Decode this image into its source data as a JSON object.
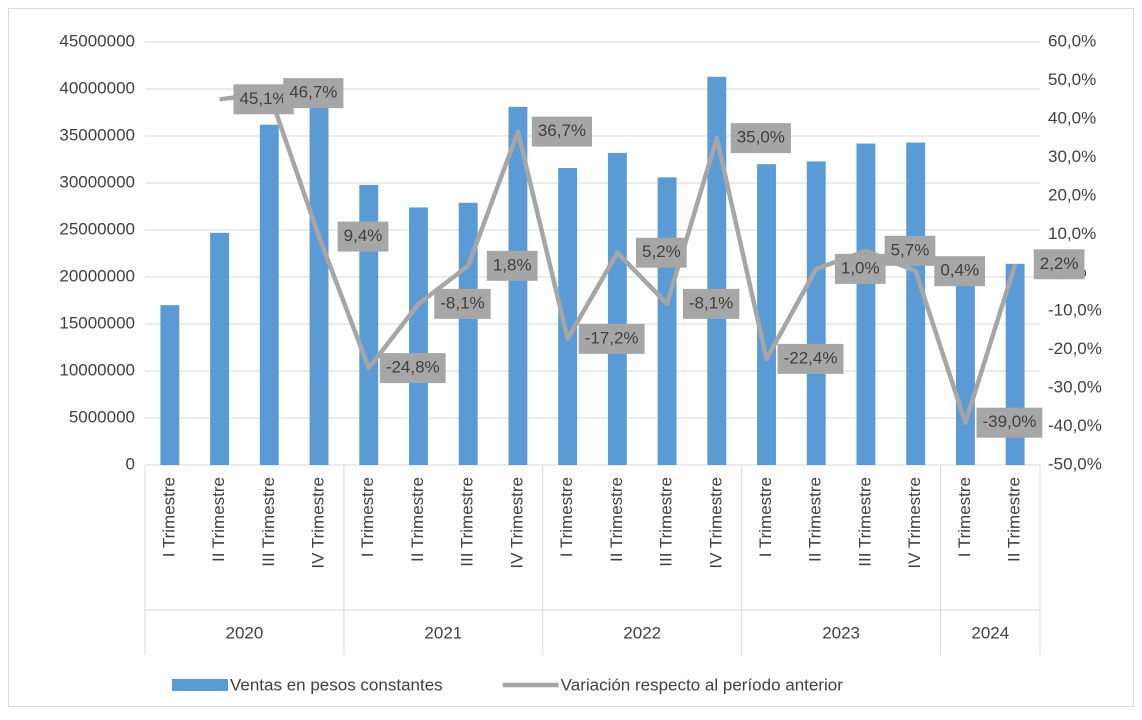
{
  "chart_data": {
    "type": "bar_line",
    "categories": [
      "I Trimestre",
      "II Trimestre",
      "III Trimestre",
      "IV Trimestre",
      "I Trimestre",
      "II Trimestre",
      "III Trimestre",
      "IV Trimestre",
      "I Trimestre",
      "II Trimestre",
      "III Trimestre",
      "IV Trimestre",
      "I Trimestre",
      "II Trimestre",
      "III Trimestre",
      "IV Trimestre",
      "I Trimestre",
      "II Trimestre"
    ],
    "groups": [
      {
        "label": "2020",
        "start": 0,
        "end": 3
      },
      {
        "label": "2021",
        "start": 4,
        "end": 7
      },
      {
        "label": "2022",
        "start": 8,
        "end": 11
      },
      {
        "label": "2023",
        "start": 12,
        "end": 15
      },
      {
        "label": "2024",
        "start": 16,
        "end": 17
      }
    ],
    "series": [
      {
        "name": "Ventas en pesos constantes",
        "type": "bar",
        "color": "#5b9bd5",
        "values": [
          17000000,
          24700000,
          36200000,
          39600000,
          29800000,
          27400000,
          27900000,
          38100000,
          31600000,
          33200000,
          30600000,
          41300000,
          32000000,
          32300000,
          34200000,
          34300000,
          20900000,
          21400000
        ]
      },
      {
        "name": "Variación respecto al período anterior",
        "type": "line",
        "axis": "y2",
        "color": "#a6a6a6",
        "values": [
          null,
          45.1,
          46.7,
          9.4,
          -24.8,
          -8.1,
          1.8,
          36.7,
          -17.2,
          5.2,
          -8.1,
          35.0,
          -22.4,
          1.0,
          5.7,
          0.4,
          -39.0,
          2.2
        ],
        "value_labels": [
          null,
          "45,1%",
          "46,7%",
          "9,4%",
          "-24,8%",
          "-8,1%",
          "1,8%",
          "36,7%",
          "-17,2%",
          "5,2%",
          "-8,1%",
          "35,0%",
          "-22,4%",
          "1,0%",
          "5,7%",
          "0,4%",
          "-39,0%",
          "2,2%"
        ]
      }
    ],
    "ylim": [
      0,
      45000000
    ],
    "yticks": [
      0,
      5000000,
      10000000,
      15000000,
      20000000,
      25000000,
      30000000,
      35000000,
      40000000,
      45000000
    ],
    "y2lim": [
      -50,
      60
    ],
    "y2ticks": [
      {
        "value": -50,
        "label": "-50,0%"
      },
      {
        "value": -40,
        "label": "-40,0%"
      },
      {
        "value": -30,
        "label": "-30,0%"
      },
      {
        "value": -20,
        "label": "-20,0%"
      },
      {
        "value": -10,
        "label": "-10,0%"
      },
      {
        "value": 0,
        "label": "0,0%"
      },
      {
        "value": 10,
        "label": "10,0%"
      },
      {
        "value": 20,
        "label": "20,0%"
      },
      {
        "value": 30,
        "label": "30,0%"
      },
      {
        "value": 40,
        "label": "40,0%"
      },
      {
        "value": 50,
        "label": "50,0%"
      },
      {
        "value": 60,
        "label": "60,0%"
      }
    ],
    "grid": true,
    "legend": "bottom"
  }
}
